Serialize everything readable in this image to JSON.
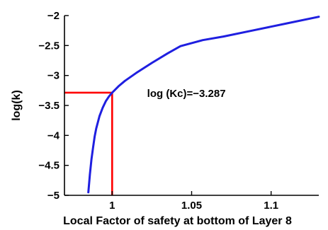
{
  "chart_data": {
    "type": "line",
    "title": "",
    "xlabel": "Local Factor of safety at bottom of Layer 8",
    "ylabel": "log(k)",
    "xlim": [
      0.97,
      1.13
    ],
    "ylim": [
      -5,
      -2
    ],
    "xticks": [
      1,
      1.05,
      1.1
    ],
    "xtick_labels": [
      "1",
      "1.05",
      "1.1"
    ],
    "yticks": [
      -2,
      -2.5,
      -3,
      -3.5,
      -4,
      -4.5,
      -5
    ],
    "ytick_labels": [
      "−2",
      "−2.5",
      "−3",
      "−3.5",
      "−4",
      "−4.5",
      "−5"
    ],
    "grid": false,
    "series": [
      {
        "color": "#1f1fe0",
        "x": [
          0.985,
          0.986,
          0.987,
          0.988,
          0.989,
          0.99,
          0.992,
          0.994,
          0.996,
          0.998,
          1.0,
          1.004,
          1.008,
          1.015,
          1.025,
          1.035,
          1.043,
          1.05,
          1.057,
          1.07,
          1.09,
          1.11,
          1.13
        ],
        "y": [
          -4.95,
          -4.65,
          -4.4,
          -4.2,
          -4.02,
          -3.88,
          -3.68,
          -3.54,
          -3.43,
          -3.35,
          -3.287,
          -3.18,
          -3.09,
          -2.96,
          -2.79,
          -2.63,
          -2.51,
          -2.46,
          -2.41,
          -2.35,
          -2.24,
          -2.13,
          -2.02
        ]
      }
    ],
    "reference_lines": {
      "color": "#ff0000",
      "x": 1.0,
      "y": -3.287
    },
    "annotation": {
      "text": "log (Kc)=−3.287",
      "x": 1.022,
      "y": -3.36
    }
  }
}
